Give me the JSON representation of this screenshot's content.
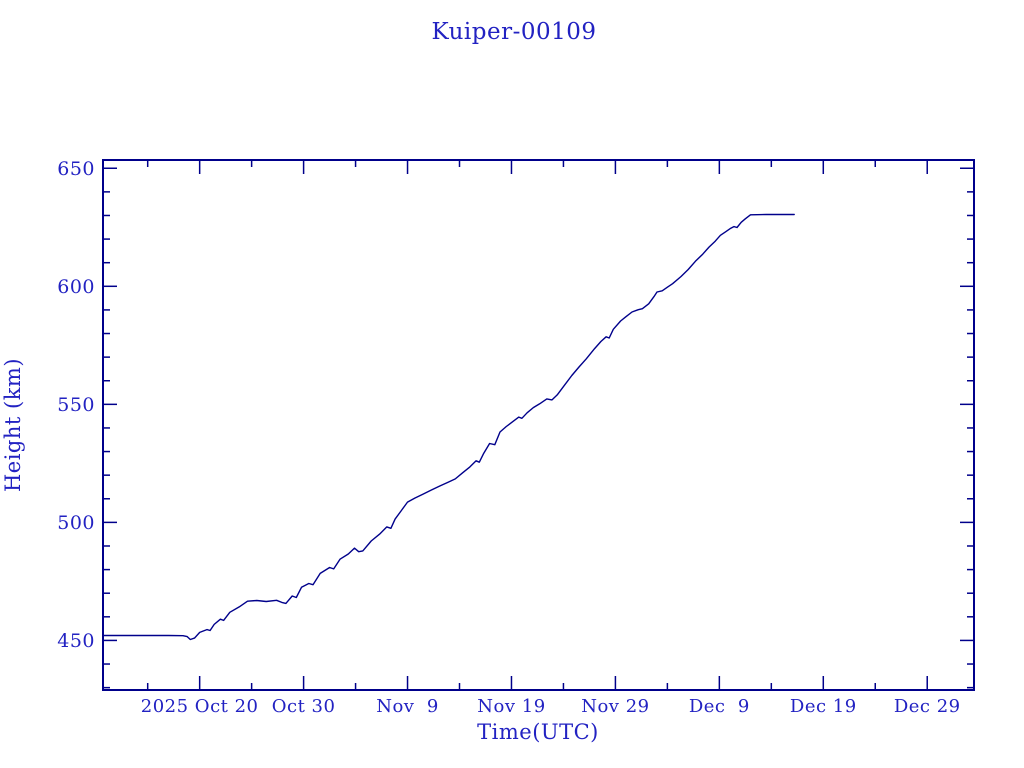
{
  "window": {
    "background": "#ffffff"
  },
  "colors": {
    "text_blue": "#2222c2",
    "axis_navy": "#00008b",
    "line_navy": "#00008b"
  },
  "chart_data": {
    "type": "line",
    "title": "Kuiper-00109",
    "xlabel": "Time(UTC)",
    "ylabel": "Height (km)",
    "grid": false,
    "legend": null,
    "x_unit": "days since 2025 Oct 20 00:00 UTC",
    "xlim": [
      -9.3,
      74.5
    ],
    "ylim": [
      429.0,
      653.5
    ],
    "x_major_ticks": [
      {
        "d": 0,
        "label": "2025 Oct 20"
      },
      {
        "d": 10,
        "label": "Oct 30"
      },
      {
        "d": 20,
        "label": "Nov  9"
      },
      {
        "d": 30,
        "label": "Nov 19"
      },
      {
        "d": 40,
        "label": "Nov 29"
      },
      {
        "d": 50,
        "label": "Dec  9"
      },
      {
        "d": 60,
        "label": "Dec 19"
      },
      {
        "d": 70,
        "label": "Dec 29"
      }
    ],
    "x_minor_step_days": 5,
    "y_major_ticks": [
      450,
      500,
      550,
      600,
      650
    ],
    "y_minor_step": 10,
    "series": [
      {
        "name": "orbit-height",
        "color": "#00008b",
        "points": [
          [
            -9.3,
            452.1
          ],
          [
            -6.0,
            452.1
          ],
          [
            -3.0,
            452.1
          ],
          [
            -1.6,
            452.0
          ],
          [
            -1.2,
            451.6
          ],
          [
            -0.9,
            450.4
          ],
          [
            -0.5,
            451.0
          ],
          [
            0.0,
            453.4
          ],
          [
            0.7,
            454.6
          ],
          [
            1.0,
            454.2
          ],
          [
            1.4,
            456.8
          ],
          [
            2.0,
            459.0
          ],
          [
            2.3,
            458.5
          ],
          [
            2.9,
            461.9
          ],
          [
            3.8,
            464.2
          ],
          [
            4.6,
            466.6
          ],
          [
            5.5,
            466.9
          ],
          [
            6.4,
            466.5
          ],
          [
            7.4,
            467.0
          ],
          [
            7.9,
            466.1
          ],
          [
            8.3,
            465.7
          ],
          [
            8.9,
            468.8
          ],
          [
            9.3,
            468.2
          ],
          [
            9.8,
            472.5
          ],
          [
            10.5,
            474.1
          ],
          [
            10.9,
            473.6
          ],
          [
            11.6,
            478.4
          ],
          [
            12.5,
            480.9
          ],
          [
            12.9,
            480.3
          ],
          [
            13.5,
            484.4
          ],
          [
            14.3,
            486.6
          ],
          [
            14.9,
            489.1
          ],
          [
            15.3,
            487.6
          ],
          [
            15.7,
            487.9
          ],
          [
            16.5,
            492.1
          ],
          [
            17.3,
            495.0
          ],
          [
            18.0,
            498.1
          ],
          [
            18.4,
            497.5
          ],
          [
            18.8,
            501.4
          ],
          [
            19.4,
            505.0
          ],
          [
            20.0,
            508.6
          ],
          [
            20.7,
            510.3
          ],
          [
            21.5,
            512.0
          ],
          [
            22.3,
            513.7
          ],
          [
            23.1,
            515.4
          ],
          [
            23.9,
            517.0
          ],
          [
            24.6,
            518.4
          ],
          [
            25.3,
            521.0
          ],
          [
            26.0,
            523.5
          ],
          [
            26.6,
            526.1
          ],
          [
            26.9,
            525.5
          ],
          [
            27.3,
            529.0
          ],
          [
            27.9,
            533.4
          ],
          [
            28.4,
            532.9
          ],
          [
            28.9,
            538.3
          ],
          [
            29.5,
            540.6
          ],
          [
            30.1,
            542.6
          ],
          [
            30.7,
            544.6
          ],
          [
            31.0,
            544.1
          ],
          [
            31.5,
            546.4
          ],
          [
            32.1,
            548.6
          ],
          [
            32.7,
            550.2
          ],
          [
            33.4,
            552.3
          ],
          [
            33.9,
            551.9
          ],
          [
            34.4,
            554.0
          ],
          [
            35.1,
            558.1
          ],
          [
            35.8,
            562.2
          ],
          [
            36.5,
            565.8
          ],
          [
            37.2,
            569.3
          ],
          [
            38.0,
            573.6
          ],
          [
            38.6,
            576.6
          ],
          [
            39.1,
            578.6
          ],
          [
            39.4,
            578.1
          ],
          [
            39.8,
            581.8
          ],
          [
            40.5,
            585.3
          ],
          [
            41.0,
            587.1
          ],
          [
            41.6,
            589.1
          ],
          [
            42.2,
            590.1
          ],
          [
            42.6,
            590.5
          ],
          [
            43.2,
            592.6
          ],
          [
            43.7,
            595.6
          ],
          [
            44.0,
            597.6
          ],
          [
            44.5,
            598.1
          ],
          [
            45.0,
            599.6
          ],
          [
            45.5,
            601.1
          ],
          [
            46.3,
            604.1
          ],
          [
            47.0,
            607.1
          ],
          [
            47.7,
            610.6
          ],
          [
            48.4,
            613.6
          ],
          [
            49.0,
            616.6
          ],
          [
            49.6,
            619.1
          ],
          [
            50.1,
            621.6
          ],
          [
            50.6,
            623.1
          ],
          [
            51.1,
            624.6
          ],
          [
            51.4,
            625.3
          ],
          [
            51.7,
            624.9
          ],
          [
            52.1,
            627.1
          ],
          [
            52.5,
            628.6
          ],
          [
            53.0,
            630.3
          ],
          [
            54.5,
            630.4
          ],
          [
            56.0,
            630.4
          ],
          [
            57.2,
            630.4
          ]
        ]
      }
    ]
  }
}
